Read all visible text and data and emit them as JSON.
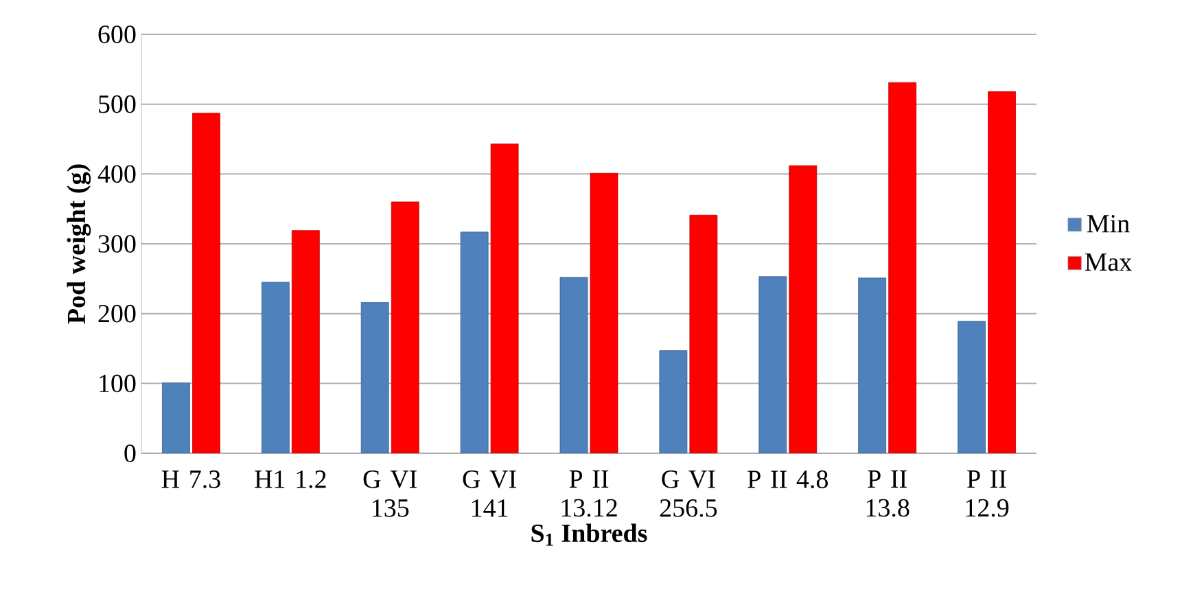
{
  "chart_data": {
    "type": "bar",
    "xlabel": "S$_{1}$ Inbreds",
    "ylabel": "Pod weight (g)",
    "categories": [
      "H 7.3",
      "H1 1.2",
      "G VI 135",
      "G VI 141",
      "P II 13.12",
      "G VI 256.5",
      "P II 4.8",
      "P II 13.8",
      "P II 12.9"
    ],
    "series": [
      {
        "name": "Min",
        "color": "#4f81bd",
        "values": [
          101,
          245,
          216,
          317,
          252,
          147,
          253,
          251,
          189
        ]
      },
      {
        "name": "Max",
        "color": "#ff0000",
        "values": [
          487,
          319,
          360,
          443,
          401,
          341,
          412,
          531,
          518
        ]
      }
    ],
    "ylim": [
      0,
      600
    ],
    "yticks": [
      0,
      100,
      200,
      300,
      400,
      500,
      600
    ],
    "grid": "y",
    "legend": "right"
  }
}
